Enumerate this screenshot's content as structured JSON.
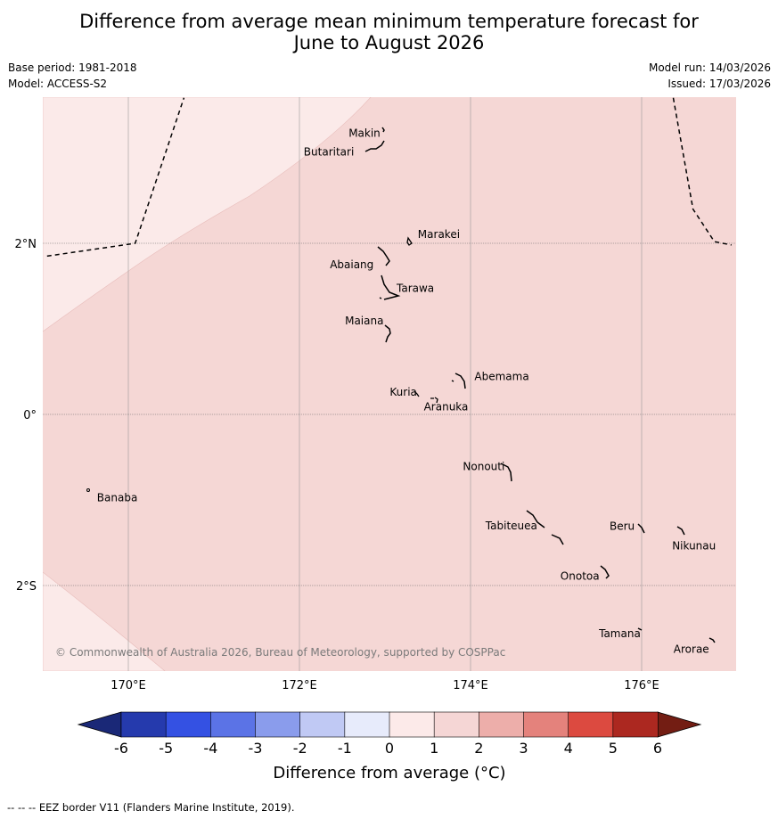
{
  "title": {
    "line1": "Difference from average mean minimum temperature forecast for",
    "line2": "June to August 2026"
  },
  "meta": {
    "base_period": "Base period: 1981-2018",
    "model": "Model: ACCESS-S2",
    "model_run": "Model run: 14/03/2026",
    "issued": "Issued: 17/03/2026"
  },
  "map": {
    "extent": {
      "lon": [
        169.0,
        177.1
      ],
      "lat": [
        -3.0,
        3.7
      ]
    },
    "lon_ticks": [
      {
        "value": 170,
        "label": "170°E"
      },
      {
        "value": 172,
        "label": "172°E"
      },
      {
        "value": 174,
        "label": "174°E"
      },
      {
        "value": 176,
        "label": "176°E"
      }
    ],
    "lat_ticks": [
      {
        "value": 2,
        "label": "2°N"
      },
      {
        "value": 0,
        "label": "0°"
      },
      {
        "value": -2,
        "label": "2°S"
      }
    ],
    "places": [
      {
        "name": "Makin",
        "lon": 172.95,
        "lat": 3.33
      },
      {
        "name": "Butaritari",
        "lon": 172.8,
        "lat": 3.1
      },
      {
        "name": "Marakei",
        "lon": 173.3,
        "lat": 2.0
      },
      {
        "name": "Abaiang",
        "lon": 172.95,
        "lat": 1.8
      },
      {
        "name": "Tarawa",
        "lon": 173.0,
        "lat": 1.4
      },
      {
        "name": "Maiana",
        "lon": 172.98,
        "lat": 0.95
      },
      {
        "name": "Abemama",
        "lon": 173.9,
        "lat": 0.4
      },
      {
        "name": "Kuria",
        "lon": 173.4,
        "lat": 0.22
      },
      {
        "name": "Aranuka",
        "lon": 173.6,
        "lat": 0.17
      },
      {
        "name": "Banaba",
        "lon": 169.55,
        "lat": -0.88
      },
      {
        "name": "Nonouti",
        "lon": 174.4,
        "lat": -0.65
      },
      {
        "name": "Tabiteuea",
        "lon": 174.8,
        "lat": -1.3
      },
      {
        "name": "Beru",
        "lon": 176.0,
        "lat": -1.35
      },
      {
        "name": "Nikunau",
        "lon": 176.45,
        "lat": -1.35
      },
      {
        "name": "Onotoa",
        "lon": 175.55,
        "lat": -1.85
      },
      {
        "name": "Tamana",
        "lon": 175.98,
        "lat": -2.5
      },
      {
        "name": "Arorae",
        "lon": 176.8,
        "lat": -2.65
      }
    ],
    "eez_borders": [
      [
        [
          169.05,
          1.85
        ],
        [
          170.08,
          2.0
        ],
        [
          170.65,
          3.7
        ]
      ],
      [
        [
          176.37,
          3.7
        ],
        [
          176.6,
          2.4
        ],
        [
          176.85,
          2.02
        ],
        [
          177.05,
          1.98
        ]
      ]
    ],
    "field": {
      "background_class": "1 to 2",
      "lower_class": "0 to 1"
    },
    "copyright": "© Commonwealth of Australia 2026, Bureau of Meteorology, supported by COSPPac"
  },
  "colorbar": {
    "ticks": [
      "-6",
      "-5",
      "-4",
      "-3",
      "-2",
      "-1",
      "0",
      "1",
      "2",
      "3",
      "4",
      "5",
      "6"
    ],
    "colors": [
      "#253aad",
      "#3451e3",
      "#5b73e6",
      "#8a9cec",
      "#c0c9f4",
      "#e7ebfb",
      "#fceae9",
      "#f5d6d5",
      "#edaeaa",
      "#e4827c",
      "#dc4a40",
      "#ac2820"
    ],
    "extend_low": "#1a2877",
    "extend_high": "#731d13",
    "label": "Difference from average (°C)"
  },
  "footnote": "--  --  -- EEZ border V11 (Flanders Marine Institute, 2019).",
  "colors": {
    "class_0_1": "#fbeae9",
    "class_1_2": "#f5d7d5",
    "grid": "#999999"
  }
}
